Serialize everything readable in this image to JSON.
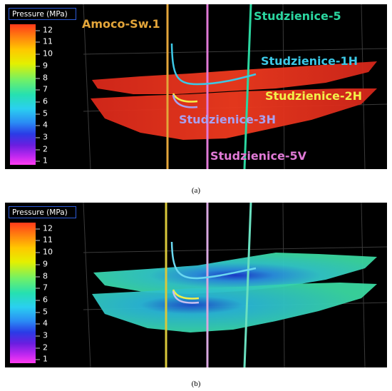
{
  "legend": {
    "title": "Pressure (MPa)",
    "ticks": [
      "12",
      "11",
      "10",
      "9",
      "8",
      "7",
      "6",
      "5",
      "4",
      "3",
      "2",
      "1"
    ],
    "colors": [
      "#ff4a1a",
      "#ff8c00",
      "#ffd000",
      "#d8f000",
      "#7cf06a",
      "#33e09a",
      "#29d8c8",
      "#2fc0f0",
      "#2a6cf0",
      "#5a2ee0",
      "#b02cf0",
      "#ff40f0"
    ]
  },
  "panel_a": {
    "wells": {
      "amoco": "Amoco-Sw.1",
      "studz5": "Studzienice-5",
      "studz1h": "Studzienice-1H",
      "studz2h": "Studzienice-2H",
      "studz3h": "Studzienice-3H",
      "studz5v": "Studzienice-5V"
    },
    "caption": "(a)"
  },
  "panel_b": {
    "caption": "(b)"
  },
  "colors": {
    "amoco": "#e3a53a",
    "studz5": "#2bd6a0",
    "studz1h": "#3cc8e6",
    "studz2h": "#f2f04a",
    "studz3h": "#a9a0f0",
    "studz5v": "#e07ad6",
    "surface_a": "#e8321a",
    "surface_b": "#3bd1a8"
  }
}
